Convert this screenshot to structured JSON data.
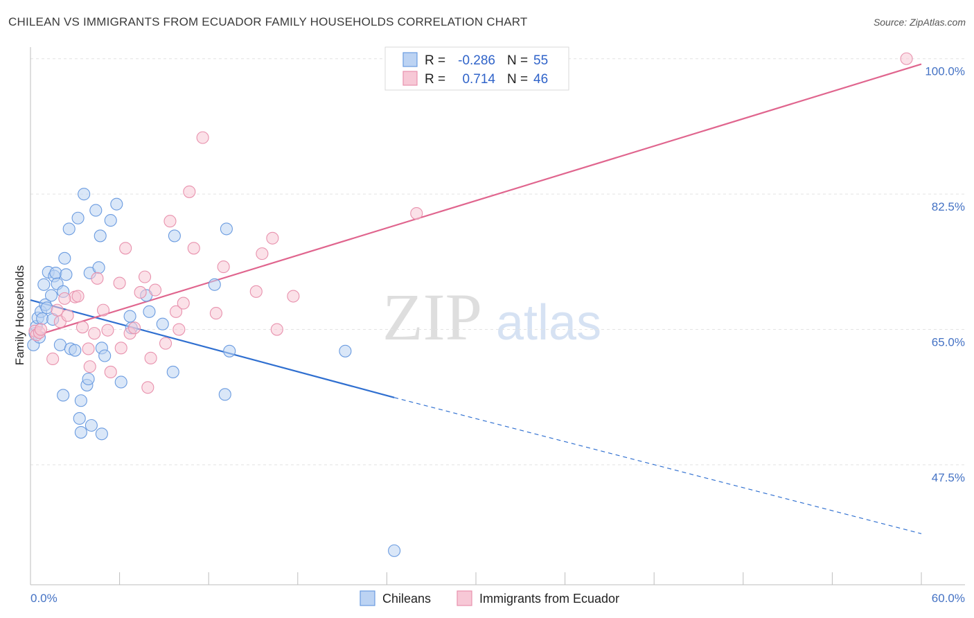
{
  "chart_data": {
    "type": "scatter",
    "title": "CHILEAN VS IMMIGRANTS FROM ECUADOR FAMILY HOUSEHOLDS CORRELATION CHART",
    "source": "Source: ZipAtlas.com",
    "xlabel": "",
    "ylabel": "Family Households",
    "xlim": [
      0,
      60
    ],
    "ylim": [
      32,
      101.5
    ],
    "x_tick_labels": [
      "0.0%",
      "60.0%"
    ],
    "y_ticks": [
      {
        "value": 47.5,
        "label": "47.5%"
      },
      {
        "value": 65.0,
        "label": "65.0%"
      },
      {
        "value": 82.5,
        "label": "82.5%"
      },
      {
        "value": 100.0,
        "label": "100.0%"
      }
    ],
    "legend": {
      "rows": [
        {
          "r_label": "R =",
          "r_value": "-0.286",
          "n_label": "N =",
          "n_value": "55"
        },
        {
          "r_label": "R =",
          "r_value": "0.714",
          "n_label": "N =",
          "n_value": "46"
        }
      ]
    },
    "watermark": {
      "zip": "ZIP",
      "atlas": "atlas"
    },
    "series": [
      {
        "name": "Chileans",
        "color": "#6a9be0",
        "fill": "#bcd3f3",
        "trend": {
          "x0": 0,
          "y0": 68.8,
          "x1": 24.5,
          "y1": 56.2,
          "dash_to_x": 60,
          "dash_to_y": 38.6
        },
        "points": [
          [
            0.2,
            63.0
          ],
          [
            0.3,
            64.5
          ],
          [
            0.4,
            65.4
          ],
          [
            0.5,
            66.5
          ],
          [
            0.7,
            67.3
          ],
          [
            0.8,
            66.4
          ],
          [
            0.9,
            70.8
          ],
          [
            1.0,
            68.2
          ],
          [
            1.1,
            67.8
          ],
          [
            1.2,
            72.4
          ],
          [
            1.4,
            69.4
          ],
          [
            1.5,
            66.3
          ],
          [
            1.6,
            71.9
          ],
          [
            1.7,
            72.3
          ],
          [
            1.8,
            70.9
          ],
          [
            2.0,
            63.0
          ],
          [
            2.2,
            69.9
          ],
          [
            2.3,
            74.2
          ],
          [
            2.4,
            72.1
          ],
          [
            2.6,
            78.0
          ],
          [
            2.7,
            62.5
          ],
          [
            3.0,
            62.3
          ],
          [
            3.2,
            79.4
          ],
          [
            2.2,
            56.5
          ],
          [
            3.4,
            55.8
          ],
          [
            3.3,
            53.5
          ],
          [
            3.4,
            51.7
          ],
          [
            3.6,
            82.5
          ],
          [
            3.8,
            57.8
          ],
          [
            3.9,
            58.6
          ],
          [
            4.0,
            72.3
          ],
          [
            4.1,
            52.6
          ],
          [
            4.4,
            80.4
          ],
          [
            4.6,
            73.0
          ],
          [
            4.7,
            77.1
          ],
          [
            4.8,
            62.6
          ],
          [
            4.8,
            51.5
          ],
          [
            5.0,
            61.6
          ],
          [
            5.4,
            79.1
          ],
          [
            5.8,
            81.2
          ],
          [
            6.1,
            58.2
          ],
          [
            6.7,
            66.7
          ],
          [
            6.8,
            65.2
          ],
          [
            7.8,
            69.4
          ],
          [
            8.0,
            67.3
          ],
          [
            8.9,
            65.7
          ],
          [
            9.6,
            59.5
          ],
          [
            9.7,
            77.1
          ],
          [
            12.4,
            70.8
          ],
          [
            13.2,
            78.0
          ],
          [
            13.4,
            62.2
          ],
          [
            13.1,
            56.6
          ],
          [
            21.2,
            62.2
          ],
          [
            24.5,
            36.4
          ],
          [
            0.6,
            64.0
          ]
        ]
      },
      {
        "name": "Immigrants from Ecuador",
        "color": "#e891ad",
        "fill": "#f7c8d6",
        "trend": {
          "x0": 0,
          "y0": 64.0,
          "x1": 60,
          "y1": 99.3
        },
        "points": [
          [
            0.3,
            64.8
          ],
          [
            0.4,
            64.3
          ],
          [
            0.6,
            64.6
          ],
          [
            0.7,
            65.0
          ],
          [
            1.5,
            61.2
          ],
          [
            1.8,
            67.5
          ],
          [
            2.0,
            66.0
          ],
          [
            2.5,
            66.8
          ],
          [
            3.0,
            69.2
          ],
          [
            3.2,
            69.3
          ],
          [
            3.5,
            65.3
          ],
          [
            3.9,
            62.5
          ],
          [
            4.0,
            60.2
          ],
          [
            4.3,
            64.5
          ],
          [
            4.5,
            71.6
          ],
          [
            4.9,
            67.5
          ],
          [
            5.2,
            64.9
          ],
          [
            5.4,
            59.5
          ],
          [
            6.0,
            71.0
          ],
          [
            6.1,
            62.6
          ],
          [
            6.4,
            75.5
          ],
          [
            6.7,
            64.5
          ],
          [
            7.0,
            65.2
          ],
          [
            7.4,
            69.8
          ],
          [
            7.7,
            71.8
          ],
          [
            7.9,
            57.5
          ],
          [
            8.1,
            61.3
          ],
          [
            8.4,
            70.1
          ],
          [
            9.1,
            63.2
          ],
          [
            9.4,
            79.0
          ],
          [
            9.8,
            67.3
          ],
          [
            10.0,
            65.0
          ],
          [
            10.3,
            68.4
          ],
          [
            10.7,
            82.8
          ],
          [
            11.0,
            75.5
          ],
          [
            11.6,
            89.8
          ],
          [
            12.5,
            67.1
          ],
          [
            13.0,
            73.1
          ],
          [
            15.2,
            69.9
          ],
          [
            15.6,
            74.8
          ],
          [
            16.3,
            76.8
          ],
          [
            16.6,
            65.0
          ],
          [
            17.7,
            69.3
          ],
          [
            26.0,
            80.0
          ],
          [
            59.0,
            100.0
          ],
          [
            2.3,
            69.0
          ]
        ]
      }
    ]
  }
}
